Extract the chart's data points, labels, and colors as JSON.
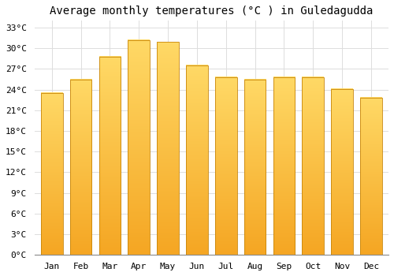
{
  "title": "Average monthly temperatures (°C ) in Guledagudda",
  "months": [
    "Jan",
    "Feb",
    "Mar",
    "Apr",
    "May",
    "Jun",
    "Jul",
    "Aug",
    "Sep",
    "Oct",
    "Nov",
    "Dec"
  ],
  "values": [
    23.5,
    25.5,
    28.8,
    31.2,
    30.9,
    27.5,
    25.8,
    25.5,
    25.8,
    25.8,
    24.1,
    22.8
  ],
  "bar_color_top": "#FFD966",
  "bar_color_bottom": "#F5A623",
  "bar_edge_color": "#C8860A",
  "background_color": "#ffffff",
  "grid_color": "#dddddd",
  "ylim": [
    0,
    34
  ],
  "yticks": [
    0,
    3,
    6,
    9,
    12,
    15,
    18,
    21,
    24,
    27,
    30,
    33
  ],
  "title_fontsize": 10,
  "tick_fontsize": 8,
  "font_family": "monospace",
  "bar_width": 0.75
}
